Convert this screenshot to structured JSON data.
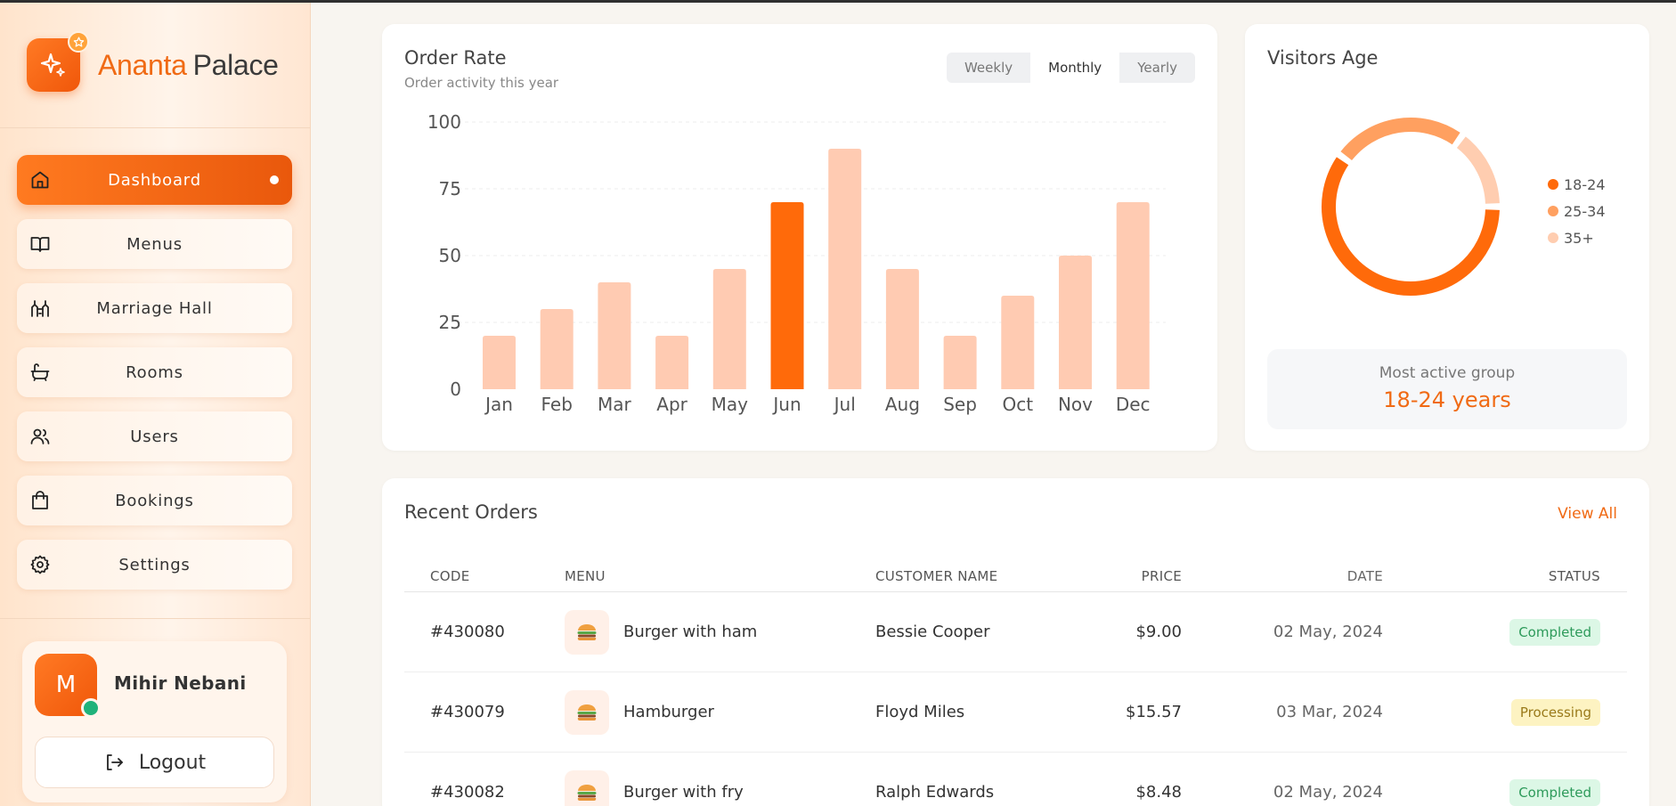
{
  "brand": {
    "first": "Ananta",
    "second": "Palace"
  },
  "sidebar": {
    "items": [
      {
        "label": "Dashboard",
        "icon": "home-icon",
        "active": true
      },
      {
        "label": "Menus",
        "icon": "book-icon"
      },
      {
        "label": "Marriage Hall",
        "icon": "hall-icon"
      },
      {
        "label": "Rooms",
        "icon": "bathtub-icon"
      },
      {
        "label": "Users",
        "icon": "users-icon"
      },
      {
        "label": "Bookings",
        "icon": "bag-icon"
      },
      {
        "label": "Settings",
        "icon": "gear-icon"
      }
    ],
    "user": {
      "initial": "M",
      "name": "Mihir Nebani",
      "logout_label": "Logout"
    }
  },
  "order_rate": {
    "title": "Order Rate",
    "subtitle": "Order activity this year",
    "tabs": [
      "Weekly",
      "Monthly",
      "Yearly"
    ],
    "active_tab": "Monthly"
  },
  "chart_data": {
    "type": "bar",
    "categories": [
      "Jan",
      "Feb",
      "Mar",
      "Apr",
      "May",
      "Jun",
      "Jul",
      "Aug",
      "Sep",
      "Oct",
      "Nov",
      "Dec"
    ],
    "values": [
      20,
      30,
      40,
      20,
      45,
      70,
      90,
      45,
      20,
      35,
      50,
      70
    ],
    "highlight": "Jun",
    "yticks": [
      0,
      25,
      50,
      75,
      100
    ],
    "ylim": [
      0,
      100
    ],
    "grid": true,
    "colors": {
      "bar": "#ffcbb2",
      "highlight": "#ff6a0a"
    }
  },
  "visitors": {
    "title": "Visitors Age",
    "legend": [
      {
        "label": "18-24",
        "value": 60,
        "color": "#ff6a0a"
      },
      {
        "label": "25-34",
        "value": 25,
        "color": "#ffa060"
      },
      {
        "label": "35+",
        "value": 15,
        "color": "#ffcdb0"
      }
    ],
    "most_active_label": "Most active group",
    "most_active_value": "18-24 years"
  },
  "orders": {
    "title": "Recent Orders",
    "view_all": "View All",
    "columns": {
      "code": "CODE",
      "menu": "MENU",
      "customer": "CUSTOMER NAME",
      "price": "PRICE",
      "date": "DATE",
      "status": "STATUS"
    },
    "rows": [
      {
        "code": "#430080",
        "menu": "Burger with ham",
        "customer": "Bessie Cooper",
        "price": "$9.00",
        "date": "02 May, 2024",
        "status": "Completed"
      },
      {
        "code": "#430079",
        "menu": "Hamburger",
        "customer": "Floyd Miles",
        "price": "$15.57",
        "date": "03 Mar, 2024",
        "status": "Processing"
      },
      {
        "code": "#430082",
        "menu": "Burger with fry",
        "customer": "Ralph Edwards",
        "price": "$8.48",
        "date": "02 May, 2024",
        "status": "Completed"
      }
    ]
  },
  "colors": {
    "accent": "#f06a14",
    "bg": "#f8f5f0"
  }
}
